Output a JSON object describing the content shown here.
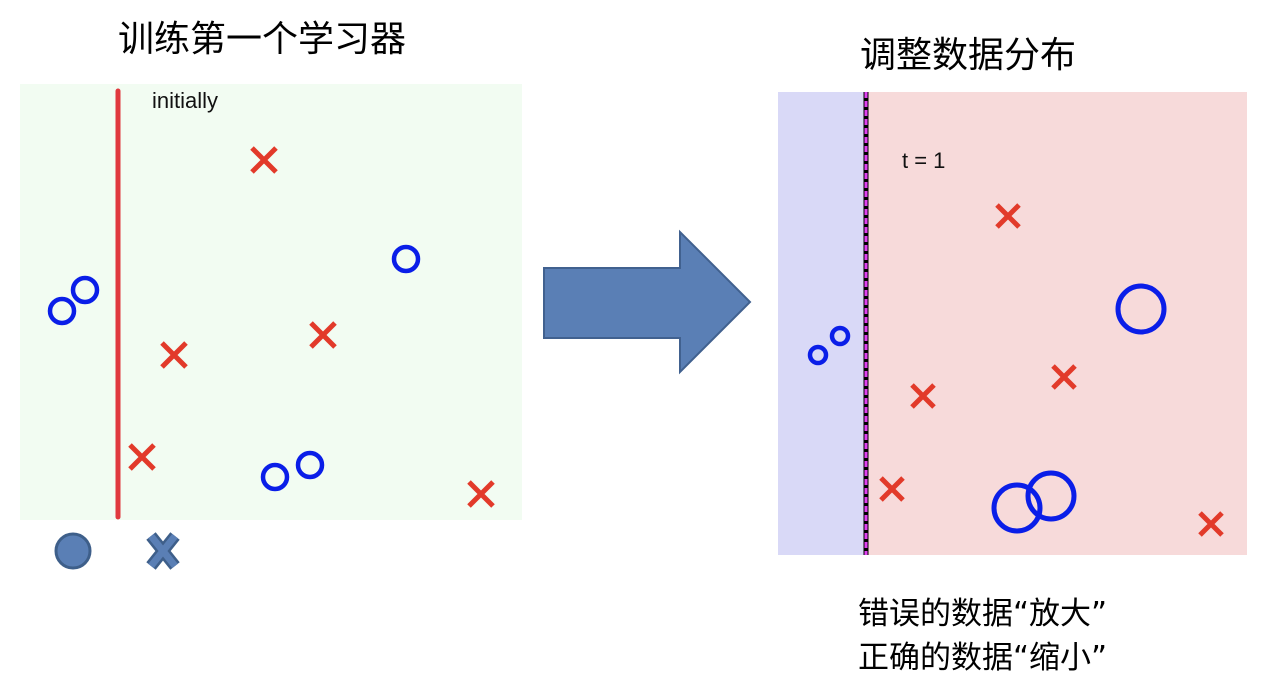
{
  "left_panel": {
    "title": "训练第一个学习器",
    "label": "initially",
    "background": "#f2fcf2",
    "classifier_color": "#e0393e",
    "circles": [
      [
        62,
        311,
        12
      ],
      [
        85,
        290,
        12
      ],
      [
        406,
        259,
        12
      ],
      [
        275,
        477,
        12
      ],
      [
        310,
        465,
        12
      ]
    ],
    "crosses": [
      [
        264,
        160
      ],
      [
        174,
        355
      ],
      [
        323,
        335
      ],
      [
        142,
        457
      ],
      [
        481,
        494
      ]
    ]
  },
  "legend": {
    "circle_icon": "filled-circle",
    "cross_icon": "x-mark",
    "color": "#5a7fb5"
  },
  "arrow": {
    "color": "#5a7fb5",
    "direction": "right"
  },
  "right_panel": {
    "title": "调整数据分布",
    "label": "t = 1",
    "region_left_color": "#d9d9f7",
    "region_right_color": "#f7dada",
    "circles": [
      [
        818,
        355,
        8
      ],
      [
        840,
        336,
        8
      ],
      [
        1141,
        309,
        23
      ],
      [
        1017,
        508,
        23
      ],
      [
        1051,
        496,
        23
      ]
    ],
    "crosses": [
      [
        1008,
        216
      ],
      [
        923,
        396
      ],
      [
        1064,
        377
      ],
      [
        892,
        489
      ],
      [
        1211,
        524
      ]
    ]
  },
  "caption": {
    "line1": "错误的数据“放大”",
    "line2": "正确的数据“缩小”"
  },
  "colors": {
    "circle": "#0a1ee8",
    "cross": "#e23a2a"
  }
}
